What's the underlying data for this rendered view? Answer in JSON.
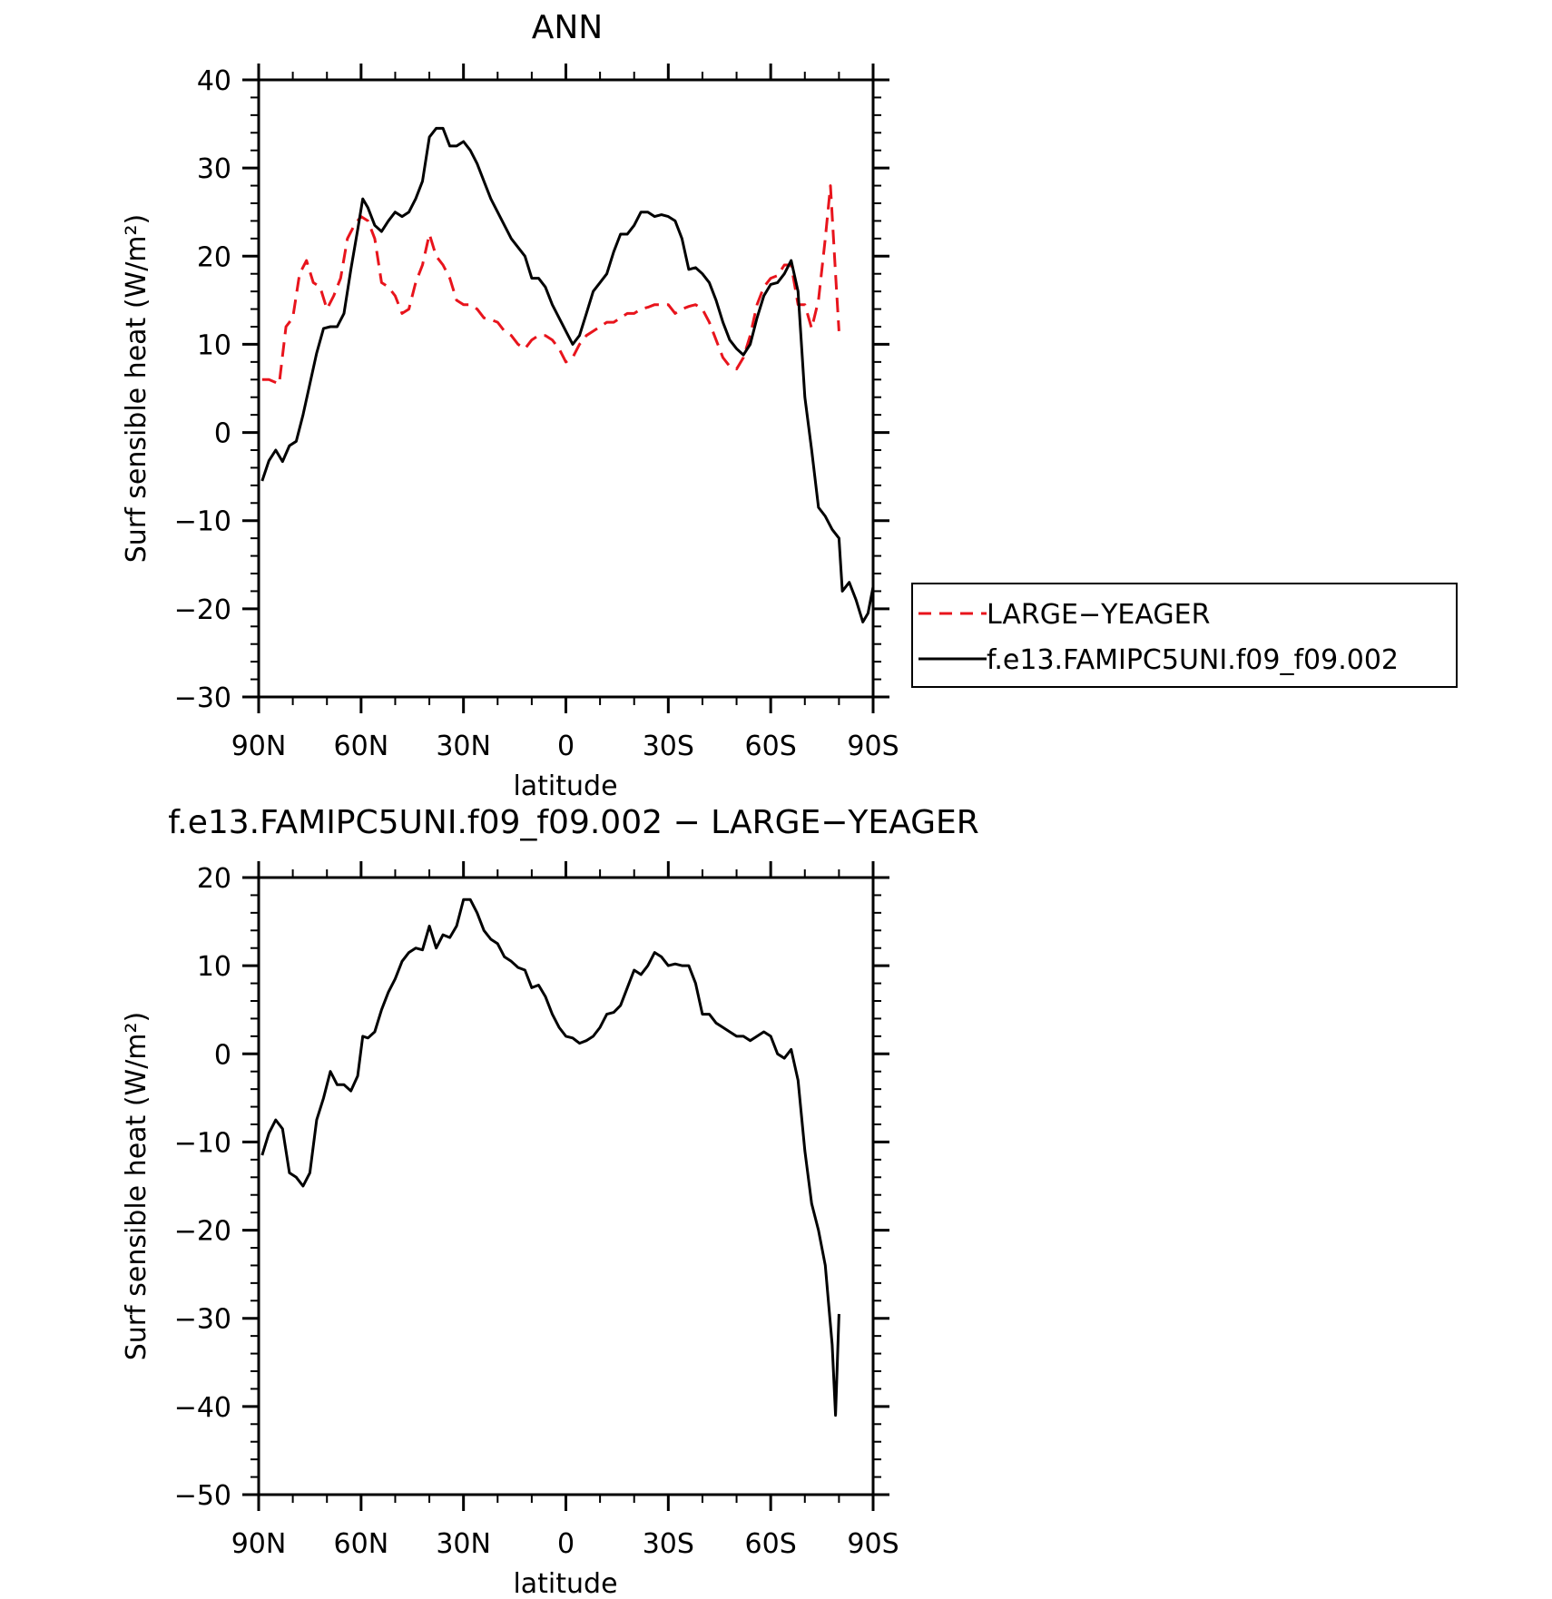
{
  "chart_data": [
    {
      "type": "line",
      "title": "ANN",
      "xlabel": "latitude",
      "ylabel": "Surf sensible heat (W/m²)",
      "xlim": [
        90,
        -90
      ],
      "ylim": [
        -30,
        40
      ],
      "xticks": [
        {
          "value": 90,
          "label": "90N"
        },
        {
          "value": 60,
          "label": "60N"
        },
        {
          "value": 30,
          "label": "30N"
        },
        {
          "value": 0,
          "label": "0"
        },
        {
          "value": -30,
          "label": "30S"
        },
        {
          "value": -60,
          "label": "60S"
        },
        {
          "value": -90,
          "label": "90S"
        }
      ],
      "yticks": [
        -30,
        -20,
        -10,
        0,
        10,
        20,
        30,
        40
      ],
      "legend": "right",
      "series": [
        {
          "name": "LARGE−YEAGER",
          "color": "#e8141c",
          "dash": "dashed",
          "points": [
            [
              89,
              6
            ],
            [
              87,
              6
            ],
            [
              84,
              5.5
            ],
            [
              82,
              12
            ],
            [
              80,
              13
            ],
            [
              78,
              18
            ],
            [
              76,
              19.5
            ],
            [
              74,
              17
            ],
            [
              72,
              16.5
            ],
            [
              70,
              14
            ],
            [
              68,
              15.5
            ],
            [
              66,
              17.5
            ],
            [
              64,
              22
            ],
            [
              62,
              23.5
            ],
            [
              60,
              24.5
            ],
            [
              58,
              24
            ],
            [
              56,
              22
            ],
            [
              54,
              17
            ],
            [
              52,
              16.5
            ],
            [
              50,
              15.5
            ],
            [
              48,
              13.5
            ],
            [
              46,
              14
            ],
            [
              44,
              17
            ],
            [
              42,
              19
            ],
            [
              40,
              22.5
            ],
            [
              38,
              20
            ],
            [
              36,
              19
            ],
            [
              34,
              17.5
            ],
            [
              32,
              15
            ],
            [
              30,
              14.5
            ],
            [
              28,
              14.5
            ],
            [
              26,
              14
            ],
            [
              24,
              13
            ],
            [
              22,
              12.8
            ],
            [
              20,
              12.5
            ],
            [
              18,
              11.5
            ],
            [
              16,
              11
            ],
            [
              14,
              10
            ],
            [
              12,
              9.5
            ],
            [
              10,
              10.5
            ],
            [
              8,
              11
            ],
            [
              6,
              11
            ],
            [
              4,
              10.5
            ],
            [
              2,
              9.5
            ],
            [
              0,
              8
            ],
            [
              -2,
              8.5
            ],
            [
              -4,
              10
            ],
            [
              -6,
              11
            ],
            [
              -8,
              11.5
            ],
            [
              -10,
              12
            ],
            [
              -12,
              12.5
            ],
            [
              -14,
              12.5
            ],
            [
              -16,
              13
            ],
            [
              -18,
              13.5
            ],
            [
              -20,
              13.5
            ],
            [
              -22,
              14
            ],
            [
              -24,
              14.2
            ],
            [
              -26,
              14.5
            ],
            [
              -28,
              14.5
            ],
            [
              -30,
              14.5
            ],
            [
              -32,
              13.5
            ],
            [
              -34,
              14
            ],
            [
              -36,
              14.3
            ],
            [
              -38,
              14.5
            ],
            [
              -40,
              14
            ],
            [
              -42,
              12.5
            ],
            [
              -44,
              10.5
            ],
            [
              -46,
              8.5
            ],
            [
              -48,
              7.5
            ],
            [
              -50,
              7.2
            ],
            [
              -52,
              8.5
            ],
            [
              -54,
              11
            ],
            [
              -56,
              14.5
            ],
            [
              -58,
              16.5
            ],
            [
              -60,
              17.5
            ],
            [
              -62,
              17.8
            ],
            [
              -64,
              19
            ],
            [
              -66,
              19
            ],
            [
              -68,
              14.5
            ],
            [
              -70,
              14.5
            ],
            [
              -72,
              11.8
            ],
            [
              -74,
              15
            ],
            [
              -76,
              22
            ],
            [
              -77.5,
              28
            ],
            [
              -79,
              18
            ],
            [
              -80,
              11.5
            ]
          ]
        },
        {
          "name": "f.e13.FAMIPC5UNI.f09_f09.002",
          "color": "#000000",
          "dash": "solid",
          "points": [
            [
              89,
              -5.5
            ],
            [
              87,
              -3.2
            ],
            [
              85,
              -2
            ],
            [
              83,
              -3.3
            ],
            [
              81,
              -1.5
            ],
            [
              79,
              -1
            ],
            [
              77,
              2
            ],
            [
              75,
              5.5
            ],
            [
              73,
              9
            ],
            [
              71,
              11.8
            ],
            [
              69,
              12
            ],
            [
              67,
              12
            ],
            [
              65,
              13.5
            ],
            [
              63,
              18.5
            ],
            [
              61,
              23
            ],
            [
              59.5,
              26.5
            ],
            [
              58,
              25.5
            ],
            [
              56,
              23.5
            ],
            [
              54,
              22.8
            ],
            [
              52,
              24
            ],
            [
              50,
              25
            ],
            [
              48,
              24.5
            ],
            [
              46,
              25
            ],
            [
              44,
              26.5
            ],
            [
              42,
              28.5
            ],
            [
              40,
              33.5
            ],
            [
              38,
              34.5
            ],
            [
              36,
              34.5
            ],
            [
              34,
              32.5
            ],
            [
              32,
              32.5
            ],
            [
              30,
              33
            ],
            [
              28,
              32
            ],
            [
              26,
              30.5
            ],
            [
              24,
              28.5
            ],
            [
              22,
              26.5
            ],
            [
              20,
              25
            ],
            [
              18,
              23.5
            ],
            [
              16,
              22
            ],
            [
              14,
              21
            ],
            [
              12,
              20
            ],
            [
              10,
              17.5
            ],
            [
              8,
              17.5
            ],
            [
              6,
              16.5
            ],
            [
              4,
              14.5
            ],
            [
              2,
              13
            ],
            [
              0,
              11.5
            ],
            [
              -2,
              10
            ],
            [
              -4,
              11
            ],
            [
              -6,
              13.5
            ],
            [
              -8,
              16
            ],
            [
              -10,
              17
            ],
            [
              -12,
              18
            ],
            [
              -14,
              20.5
            ],
            [
              -16,
              22.5
            ],
            [
              -18,
              22.5
            ],
            [
              -20,
              23.5
            ],
            [
              -22,
              25
            ],
            [
              -24,
              25
            ],
            [
              -26,
              24.5
            ],
            [
              -28,
              24.7
            ],
            [
              -30,
              24.5
            ],
            [
              -32,
              24
            ],
            [
              -34,
              22
            ],
            [
              -36,
              18.5
            ],
            [
              -38,
              18.7
            ],
            [
              -40,
              18
            ],
            [
              -42,
              17
            ],
            [
              -44,
              15
            ],
            [
              -46,
              12.5
            ],
            [
              -48,
              10.5
            ],
            [
              -50,
              9.5
            ],
            [
              -52,
              8.8
            ],
            [
              -54,
              10
            ],
            [
              -56,
              13
            ],
            [
              -58,
              15.5
            ],
            [
              -60,
              16.8
            ],
            [
              -62,
              17
            ],
            [
              -64,
              18
            ],
            [
              -66,
              19.5
            ],
            [
              -68,
              16
            ],
            [
              -70,
              4
            ],
            [
              -72,
              -2
            ],
            [
              -74,
              -8.5
            ],
            [
              -76,
              -9.5
            ],
            [
              -78,
              -11
            ],
            [
              -80,
              -12
            ],
            [
              -81,
              -18
            ],
            [
              -83,
              -17
            ],
            [
              -85,
              -19
            ],
            [
              -87,
              -21.5
            ],
            [
              -88.5,
              -20.5
            ],
            [
              -90,
              -17.5
            ]
          ]
        }
      ]
    },
    {
      "type": "line",
      "title": "f.e13.FAMIPC5UNI.f09_f09.002 − LARGE−YEAGER",
      "xlabel": "latitude",
      "ylabel": "Surf sensible heat (W/m²)",
      "xlim": [
        90,
        -90
      ],
      "ylim": [
        -50,
        20
      ],
      "xticks": [
        {
          "value": 90,
          "label": "90N"
        },
        {
          "value": 60,
          "label": "60N"
        },
        {
          "value": 30,
          "label": "30N"
        },
        {
          "value": 0,
          "label": "0"
        },
        {
          "value": -30,
          "label": "30S"
        },
        {
          "value": -60,
          "label": "60S"
        },
        {
          "value": -90,
          "label": "90S"
        }
      ],
      "yticks": [
        -50,
        -40,
        -30,
        -20,
        -10,
        0,
        10,
        20
      ],
      "series": [
        {
          "color": "#000000",
          "dash": "solid",
          "points": [
            [
              89,
              -11.5
            ],
            [
              87,
              -9
            ],
            [
              85,
              -7.5
            ],
            [
              83,
              -8.5
            ],
            [
              81,
              -13.5
            ],
            [
              79,
              -14
            ],
            [
              77,
              -15
            ],
            [
              75,
              -13.5
            ],
            [
              73,
              -7.5
            ],
            [
              71,
              -5
            ],
            [
              69,
              -2
            ],
            [
              67,
              -3.5
            ],
            [
              65,
              -3.5
            ],
            [
              63,
              -4.2
            ],
            [
              61,
              -2.5
            ],
            [
              59.5,
              2
            ],
            [
              58,
              1.8
            ],
            [
              56,
              2.5
            ],
            [
              54,
              5
            ],
            [
              52,
              7
            ],
            [
              50,
              8.5
            ],
            [
              48,
              10.5
            ],
            [
              46,
              11.5
            ],
            [
              44,
              12
            ],
            [
              42,
              11.8
            ],
            [
              40,
              14.5
            ],
            [
              38,
              12
            ],
            [
              36,
              13.5
            ],
            [
              34,
              13.2
            ],
            [
              32,
              14.5
            ],
            [
              30,
              17.5
            ],
            [
              28,
              17.5
            ],
            [
              26,
              16
            ],
            [
              24,
              14
            ],
            [
              22,
              13
            ],
            [
              20,
              12.5
            ],
            [
              18,
              11
            ],
            [
              16,
              10.5
            ],
            [
              14,
              9.8
            ],
            [
              12,
              9.5
            ],
            [
              10,
              7.5
            ],
            [
              8,
              7.8
            ],
            [
              6,
              6.5
            ],
            [
              4,
              4.5
            ],
            [
              2,
              3
            ],
            [
              0,
              2
            ],
            [
              -2,
              1.8
            ],
            [
              -4,
              1.2
            ],
            [
              -6,
              1.5
            ],
            [
              -8,
              2
            ],
            [
              -10,
              3
            ],
            [
              -12,
              4.5
            ],
            [
              -14,
              4.7
            ],
            [
              -16,
              5.5
            ],
            [
              -18,
              7.5
            ],
            [
              -20,
              9.5
            ],
            [
              -22,
              9
            ],
            [
              -24,
              10
            ],
            [
              -26,
              11.5
            ],
            [
              -28,
              11
            ],
            [
              -30,
              10
            ],
            [
              -32,
              10.2
            ],
            [
              -34,
              10
            ],
            [
              -36,
              10
            ],
            [
              -38,
              8
            ],
            [
              -40,
              4.5
            ],
            [
              -42,
              4.5
            ],
            [
              -44,
              3.5
            ],
            [
              -46,
              3
            ],
            [
              -48,
              2.5
            ],
            [
              -50,
              2
            ],
            [
              -52,
              2
            ],
            [
              -54,
              1.5
            ],
            [
              -56,
              2
            ],
            [
              -58,
              2.5
            ],
            [
              -60,
              2
            ],
            [
              -62,
              0
            ],
            [
              -64,
              -0.5
            ],
            [
              -66,
              0.5
            ],
            [
              -68,
              -3
            ],
            [
              -70,
              -11
            ],
            [
              -72,
              -17
            ],
            [
              -74,
              -20
            ],
            [
              -76,
              -24
            ],
            [
              -78,
              -33
            ],
            [
              -79,
              -41
            ],
            [
              -80,
              -29.5
            ]
          ]
        }
      ]
    }
  ]
}
